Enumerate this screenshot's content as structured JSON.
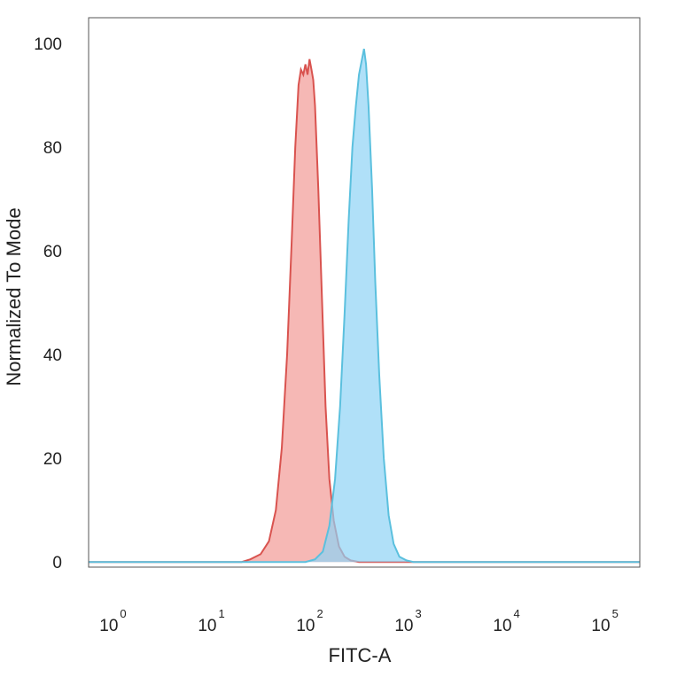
{
  "chart_data": {
    "type": "area",
    "xlabel": "FITC-A",
    "ylabel": "Normalized To Mode",
    "x_scale": "log",
    "xlim": [
      0.5,
      200000
    ],
    "ylim": [
      -1,
      105
    ],
    "grid": false,
    "y_ticks": [
      {
        "value": 0,
        "label": "0"
      },
      {
        "value": 20,
        "label": "20"
      },
      {
        "value": 40,
        "label": "40"
      },
      {
        "value": 60,
        "label": "60"
      },
      {
        "value": 80,
        "label": "80"
      },
      {
        "value": 100,
        "label": "100"
      }
    ],
    "x_ticks": [
      {
        "value": 1,
        "base": "10",
        "exp": "0"
      },
      {
        "value": 10,
        "base": "10",
        "exp": "1"
      },
      {
        "value": 100,
        "base": "10",
        "exp": "2"
      },
      {
        "value": 1000,
        "base": "10",
        "exp": "3"
      },
      {
        "value": 10000,
        "base": "10",
        "exp": "4"
      },
      {
        "value": 100000,
        "base": "10",
        "exp": "5"
      }
    ],
    "series": [
      {
        "fill": "#f4a6a3",
        "stroke": "#d9534f",
        "opacity": 0.8,
        "points": [
          [
            0.5,
            0
          ],
          [
            18,
            0
          ],
          [
            22,
            0.5
          ],
          [
            28,
            1.5
          ],
          [
            34,
            4
          ],
          [
            40,
            10
          ],
          [
            46,
            22
          ],
          [
            52,
            40
          ],
          [
            58,
            62
          ],
          [
            63,
            80
          ],
          [
            68,
            92
          ],
          [
            72,
            95
          ],
          [
            76,
            94
          ],
          [
            80,
            96
          ],
          [
            84,
            94
          ],
          [
            88,
            97
          ],
          [
            92,
            95
          ],
          [
            96,
            93
          ],
          [
            100,
            88
          ],
          [
            108,
            72
          ],
          [
            118,
            50
          ],
          [
            128,
            30
          ],
          [
            140,
            16
          ],
          [
            155,
            8
          ],
          [
            175,
            3
          ],
          [
            200,
            1
          ],
          [
            230,
            0.3
          ],
          [
            280,
            0
          ],
          [
            200000,
            0
          ]
        ]
      },
      {
        "fill": "#8fd3f5",
        "stroke": "#5bc0de",
        "opacity": 0.7,
        "points": [
          [
            0.5,
            0
          ],
          [
            80,
            0
          ],
          [
            100,
            0.5
          ],
          [
            120,
            2
          ],
          [
            140,
            7
          ],
          [
            160,
            16
          ],
          [
            180,
            30
          ],
          [
            200,
            48
          ],
          [
            220,
            66
          ],
          [
            240,
            80
          ],
          [
            260,
            88
          ],
          [
            280,
            94
          ],
          [
            300,
            97
          ],
          [
            315,
            99
          ],
          [
            330,
            96
          ],
          [
            350,
            88
          ],
          [
            380,
            72
          ],
          [
            410,
            54
          ],
          [
            450,
            36
          ],
          [
            500,
            20
          ],
          [
            560,
            9
          ],
          [
            630,
            3.5
          ],
          [
            720,
            1
          ],
          [
            850,
            0.3
          ],
          [
            1000,
            0
          ],
          [
            200000,
            0
          ]
        ]
      }
    ]
  }
}
